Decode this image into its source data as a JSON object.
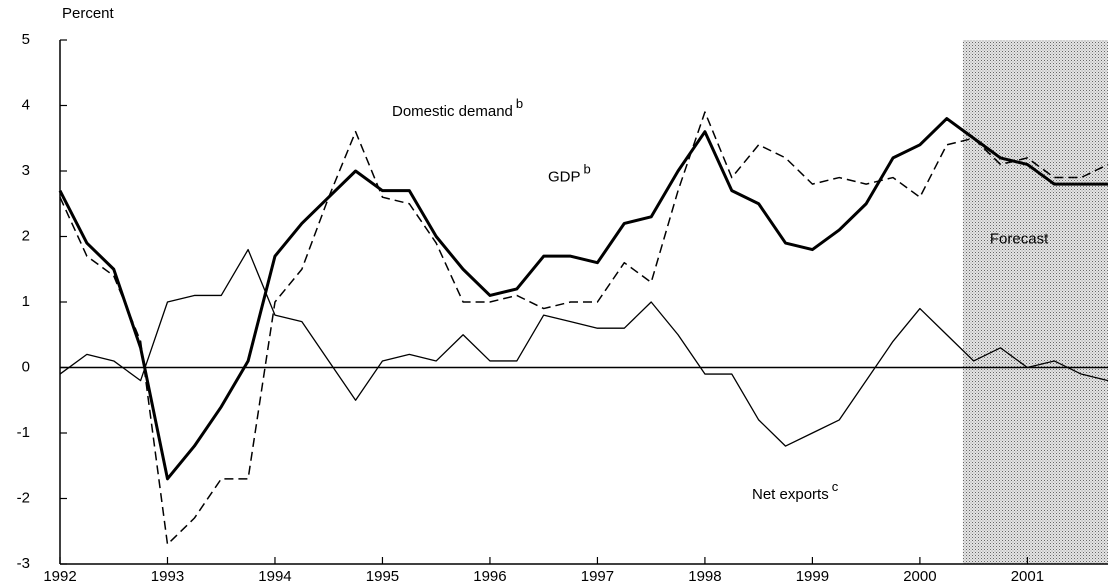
{
  "chart_data": {
    "type": "line",
    "y_label": "Percent",
    "x": [
      1992,
      1992.25,
      1992.5,
      1992.75,
      1993,
      1993.25,
      1993.5,
      1993.75,
      1994,
      1994.25,
      1994.5,
      1994.75,
      1995,
      1995.25,
      1995.5,
      1995.75,
      1996,
      1996.25,
      1996.5,
      1996.75,
      1997,
      1997.25,
      1997.5,
      1997.75,
      1998,
      1998.25,
      1998.5,
      1998.75,
      1999,
      1999.25,
      1999.5,
      1999.75,
      2000,
      2000.25,
      2000.5,
      2000.75,
      2001,
      2001.25,
      2001.5,
      2001.75
    ],
    "series": [
      {
        "name": "GDP",
        "sup": "b",
        "color": "#000000",
        "style": "thick",
        "values": [
          2.7,
          1.9,
          1.5,
          0.3,
          -1.7,
          -1.2,
          -0.6,
          0.1,
          1.7,
          2.2,
          2.6,
          3.0,
          2.7,
          2.7,
          2.0,
          1.5,
          1.1,
          1.2,
          1.7,
          1.7,
          1.6,
          2.2,
          2.3,
          3.0,
          3.6,
          2.7,
          2.5,
          1.9,
          1.8,
          2.1,
          2.5,
          3.2,
          3.4,
          3.8,
          3.5,
          3.2,
          3.1,
          2.8,
          2.8,
          2.8
        ]
      },
      {
        "name": "Domestic demand",
        "sup": "b",
        "color": "#000000",
        "style": "dashed",
        "values": [
          2.6,
          1.7,
          1.4,
          0.4,
          -2.7,
          -2.3,
          -1.7,
          -1.7,
          1.0,
          1.5,
          2.6,
          3.6,
          2.6,
          2.5,
          1.9,
          1.0,
          1.0,
          1.1,
          0.9,
          1.0,
          1.0,
          1.6,
          1.3,
          2.7,
          3.9,
          2.9,
          3.4,
          3.2,
          2.8,
          2.9,
          2.8,
          2.9,
          2.6,
          3.4,
          3.5,
          3.1,
          3.2,
          2.9,
          2.9,
          3.1
        ]
      },
      {
        "name": "Net exports",
        "sup": "c",
        "color": "#000000",
        "style": "solid",
        "values": [
          -0.1,
          0.2,
          0.1,
          -0.2,
          1.0,
          1.1,
          1.1,
          1.8,
          0.8,
          0.7,
          0.1,
          -0.5,
          0.1,
          0.2,
          0.1,
          0.5,
          0.1,
          0.1,
          0.8,
          0.7,
          0.6,
          0.6,
          1.0,
          0.5,
          -0.1,
          -0.1,
          -0.8,
          -1.2,
          -1.0,
          -0.8,
          -0.2,
          0.4,
          0.9,
          0.5,
          0.1,
          0.3,
          0.0,
          0.1,
          -0.1,
          -0.2
        ]
      }
    ],
    "forecast_label": "Forecast",
    "forecast_start": 2000.4,
    "xlim": [
      1992,
      2001.75
    ],
    "xticks": [
      1992,
      1993,
      1994,
      1995,
      1996,
      1997,
      1998,
      1999,
      2000,
      2001
    ],
    "ylim": [
      -3,
      5
    ],
    "yticks": [
      -3,
      -2,
      -1,
      0,
      1,
      2,
      3,
      4,
      5
    ],
    "zero_line": true,
    "grid": false
  }
}
